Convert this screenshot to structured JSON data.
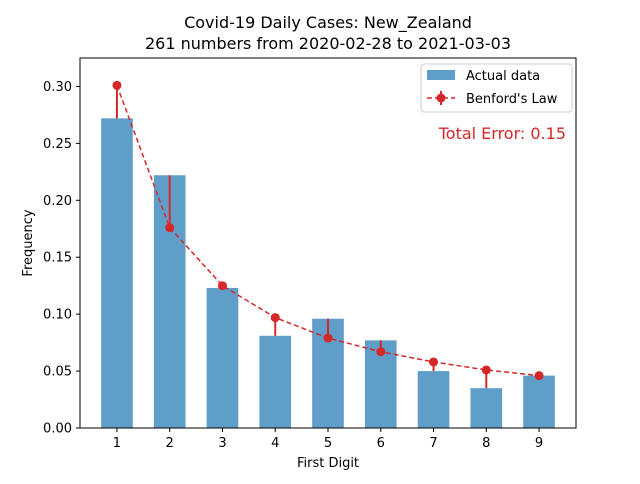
{
  "chart_data": {
    "type": "bar",
    "title": "Covid-19 Daily Cases: New_Zealand",
    "subtitle": "261 numbers from 2020-02-28 to 2021-03-03",
    "xlabel": "First Digit",
    "ylabel": "Frequency",
    "ylim": [
      0,
      0.325
    ],
    "y_ticks": [
      "0.00",
      "0.05",
      "0.10",
      "0.15",
      "0.20",
      "0.25",
      "0.30"
    ],
    "categories": [
      "1",
      "2",
      "3",
      "4",
      "5",
      "6",
      "7",
      "8",
      "9"
    ],
    "series": [
      {
        "name": "Actual data",
        "type": "bar",
        "color": "#5f9ec8",
        "values": [
          0.272,
          0.222,
          0.123,
          0.081,
          0.096,
          0.077,
          0.05,
          0.035,
          0.046
        ]
      },
      {
        "name": "Benford's Law",
        "type": "line",
        "style": "dashed",
        "color": "#d62728",
        "values": [
          0.301,
          0.176,
          0.125,
          0.097,
          0.079,
          0.067,
          0.058,
          0.051,
          0.046
        ]
      }
    ],
    "annotation": "Total Error: 0.15",
    "annotation_color": "#d62728",
    "legend_position": "top-right",
    "grid": false
  }
}
